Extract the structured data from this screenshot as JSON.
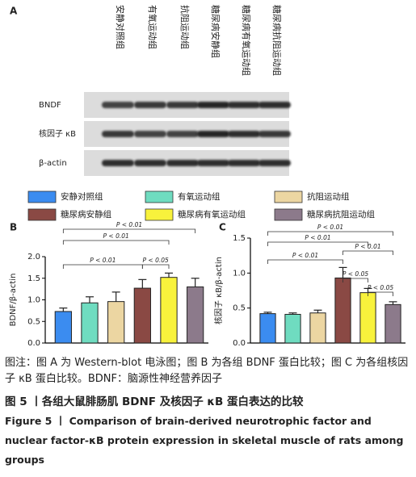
{
  "panel_a": {
    "label": "A",
    "rows": [
      "BNDF",
      "核因子 κB",
      "β-actin"
    ]
  },
  "groups": [
    {
      "name": "安静对照组",
      "color": "#3b8cf0"
    },
    {
      "name": "有氧运动组",
      "color": "#6fdcc0"
    },
    {
      "name": "抗阻运动组",
      "color": "#ecd6a2"
    },
    {
      "name": "糖尿病安静组",
      "color": "#8a4944"
    },
    {
      "name": "糖尿病有氧运动组",
      "color": "#f8f23c"
    },
    {
      "name": "糖尿病抗阻运动组",
      "color": "#8c7a8b"
    }
  ],
  "chart_data": [
    {
      "type": "bar",
      "panel": "B",
      "ylabel": "BDNF/β-actin",
      "values": [
        0.73,
        0.93,
        0.96,
        1.27,
        1.52,
        1.3
      ],
      "errors": [
        0.08,
        0.14,
        0.22,
        0.2,
        0.1,
        0.2
      ],
      "ylim": [
        0,
        2.0
      ],
      "yticks": [
        {
          "value": 0,
          "label": "0.0"
        },
        0.5,
        {
          "value": 1.0,
          "label": "1.0"
        },
        1.5,
        {
          "value": 2.0,
          "label": "2.0"
        }
      ],
      "comparisons": [
        {
          "groups": [
            0,
            5
          ],
          "label": "P < 0.01"
        },
        {
          "groups": [
            0,
            4
          ],
          "label": "P < 0.01"
        },
        {
          "groups": [
            0,
            3
          ],
          "label": "P < 0.01"
        },
        {
          "groups": [
            3,
            4
          ],
          "label": "P < 0.05"
        }
      ]
    },
    {
      "type": "bar",
      "panel": "C",
      "ylabel": "核因子 κB/β-actin",
      "values": [
        0.42,
        0.41,
        0.43,
        0.93,
        0.72,
        0.55
      ],
      "errors": [
        0.02,
        0.02,
        0.04,
        0.15,
        0.06,
        0.04
      ],
      "ylim": [
        0,
        1.5
      ],
      "yticks": [
        {
          "value": 0,
          "label": "0.0"
        },
        0.5,
        {
          "value": 1.0,
          "label": "1.0"
        },
        1.5
      ],
      "comparisons": [
        {
          "groups": [
            0,
            5
          ],
          "label": "P < 0.01"
        },
        {
          "groups": [
            0,
            4
          ],
          "label": "P < 0.01"
        },
        {
          "groups": [
            3,
            5
          ],
          "label": "P < 0.01"
        },
        {
          "groups": [
            0,
            3
          ],
          "label": "P < 0.01"
        },
        {
          "groups": [
            3,
            4
          ],
          "label": "P < 0.05"
        },
        {
          "groups": [
            4,
            5
          ],
          "label": "P < 0.05"
        }
      ]
    }
  ],
  "caption": {
    "note": "图注：图 A 为 Western-blot 电泳图；图 B 为各组 BDNF 蛋白比较；图 C 为各组核因子 κB 蛋白比较。BDNF：脑源性神经营养因子",
    "title_zh": "图 5 丨各组大鼠腓肠肌 BDNF 及核因子 κB 蛋白表达的比较",
    "title_en": "Figure 5 丨 Comparison of brain-derived neurotrophic factor and nuclear factor-κB protein expression in skeletal muscle of rats among groups"
  }
}
